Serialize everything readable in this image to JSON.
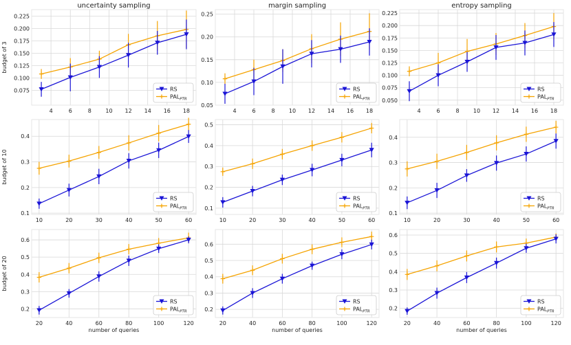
{
  "colors": {
    "rs": "#1a14d6",
    "pal": "#f5a300",
    "grid": "#d8d8d8",
    "frame": "#e6e6e6"
  },
  "chart_data": [
    {
      "type": "line",
      "title": "uncertainty sampling",
      "ylabel": "budget of 3",
      "xlabel": "",
      "x": [
        3,
        6,
        9,
        12,
        15,
        18
      ],
      "xticks": [
        4,
        6,
        8,
        10,
        12,
        14,
        16,
        18
      ],
      "xlim": [
        2,
        19
      ],
      "ylim": [
        0.045,
        0.238
      ],
      "yticks": [
        0.075,
        0.1,
        0.125,
        0.15,
        0.175,
        0.2,
        0.225
      ],
      "ytick_labels": [
        "0.075",
        "0.100",
        "0.125",
        "0.150",
        "0.175",
        "0.200",
        "0.225"
      ],
      "series": [
        {
          "name": "RS",
          "values": [
            0.077,
            0.101,
            0.122,
            0.146,
            0.171,
            0.188
          ],
          "err": [
            0.015,
            0.028,
            0.022,
            0.025,
            0.024,
            0.03
          ]
        },
        {
          "name": "PAL_PTR",
          "values": [
            0.108,
            0.122,
            0.138,
            0.167,
            0.185,
            0.198
          ],
          "err": [
            0.01,
            0.018,
            0.017,
            0.022,
            0.03,
            0.038
          ]
        }
      ],
      "legend": [
        {
          "label": "RS"
        },
        {
          "label": "PAL",
          "sub": "PTR"
        }
      ]
    },
    {
      "type": "line",
      "title": "margin sampling",
      "ylabel": "",
      "xlabel": "",
      "x": [
        3,
        6,
        9,
        12,
        15,
        18
      ],
      "xticks": [
        4,
        6,
        8,
        10,
        12,
        14,
        16,
        18
      ],
      "xlim": [
        2,
        19
      ],
      "ylim": [
        0.05,
        0.26
      ],
      "yticks": [
        0.05,
        0.1,
        0.15,
        0.2,
        0.25
      ],
      "ytick_labels": [
        "0.05",
        "0.10",
        "0.15",
        "0.20",
        "0.25"
      ],
      "series": [
        {
          "name": "RS",
          "values": [
            0.075,
            0.102,
            0.135,
            0.163,
            0.173,
            0.189
          ],
          "err": [
            0.022,
            0.03,
            0.038,
            0.03,
            0.03,
            0.03
          ]
        },
        {
          "name": "PAL_PTR",
          "values": [
            0.108,
            0.128,
            0.148,
            0.174,
            0.195,
            0.212
          ],
          "err": [
            0.012,
            0.022,
            0.025,
            0.032,
            0.037,
            0.04
          ]
        }
      ],
      "legend": [
        {
          "label": "RS"
        },
        {
          "label": "PAL",
          "sub": "PTR"
        }
      ]
    },
    {
      "type": "line",
      "title": "entropy sampling",
      "ylabel": "",
      "xlabel": "",
      "x": [
        3,
        6,
        9,
        12,
        15,
        18
      ],
      "xticks": [
        4,
        6,
        8,
        10,
        12,
        14,
        16,
        18
      ],
      "xlim": [
        2,
        19
      ],
      "ylim": [
        0.04,
        0.232
      ],
      "yticks": [
        0.05,
        0.075,
        0.1,
        0.125,
        0.15,
        0.175,
        0.2,
        0.225
      ],
      "ytick_labels": [
        "0.050",
        "0.075",
        "0.100",
        "0.125",
        "0.150",
        "0.175",
        "0.200",
        "0.225"
      ],
      "series": [
        {
          "name": "RS",
          "values": [
            0.068,
            0.1,
            0.127,
            0.156,
            0.165,
            0.182
          ],
          "err": [
            0.02,
            0.022,
            0.02,
            0.025,
            0.025,
            0.025
          ]
        },
        {
          "name": "PAL_PTR",
          "values": [
            0.108,
            0.125,
            0.148,
            0.163,
            0.18,
            0.198
          ],
          "err": [
            0.01,
            0.02,
            0.025,
            0.022,
            0.025,
            0.027
          ]
        }
      ],
      "legend": [
        {
          "label": "RS"
        },
        {
          "label": "PAL",
          "sub": "PTR"
        }
      ]
    },
    {
      "type": "line",
      "title": "",
      "ylabel": "budget of 10",
      "xlabel": "",
      "x": [
        10,
        20,
        30,
        40,
        50,
        60
      ],
      "xticks": [
        10,
        20,
        30,
        40,
        50,
        60
      ],
      "xlim": [
        7.5,
        62.5
      ],
      "ylim": [
        0.095,
        0.465
      ],
      "yticks": [
        0.1,
        0.2,
        0.3,
        0.4
      ],
      "ytick_labels": [
        "0.1",
        "0.2",
        "0.3",
        "0.4"
      ],
      "series": [
        {
          "name": "RS",
          "values": [
            0.137,
            0.19,
            0.243,
            0.304,
            0.345,
            0.399
          ],
          "err": [
            0.02,
            0.025,
            0.03,
            0.03,
            0.03,
            0.025
          ]
        },
        {
          "name": "PAL_PTR",
          "values": [
            0.275,
            0.303,
            0.337,
            0.374,
            0.412,
            0.447
          ],
          "err": [
            0.025,
            0.025,
            0.025,
            0.03,
            0.032,
            0.025
          ]
        }
      ],
      "legend": [
        {
          "label": "RS"
        },
        {
          "label": "PAL",
          "sub": "PTR"
        }
      ]
    },
    {
      "type": "line",
      "title": "",
      "ylabel": "",
      "xlabel": "",
      "x": [
        10,
        20,
        30,
        40,
        50,
        60
      ],
      "xticks": [
        10,
        20,
        30,
        40,
        50,
        60
      ],
      "xlim": [
        7.5,
        62.5
      ],
      "ylim": [
        0.07,
        0.525
      ],
      "yticks": [
        0.1,
        0.2,
        0.3,
        0.4,
        0.5
      ],
      "ytick_labels": [
        "0.1",
        "0.2",
        "0.3",
        "0.4",
        "0.5"
      ],
      "series": [
        {
          "name": "RS",
          "values": [
            0.128,
            0.182,
            0.236,
            0.283,
            0.331,
            0.379
          ],
          "err": [
            0.025,
            0.025,
            0.025,
            0.03,
            0.03,
            0.035
          ]
        },
        {
          "name": "PAL_PTR",
          "values": [
            0.275,
            0.313,
            0.359,
            0.4,
            0.44,
            0.484
          ],
          "err": [
            0.02,
            0.025,
            0.025,
            0.025,
            0.025,
            0.025
          ]
        }
      ],
      "legend": [
        {
          "label": "RS"
        },
        {
          "label": "PAL",
          "sub": "PTR"
        }
      ]
    },
    {
      "type": "line",
      "title": "",
      "ylabel": "",
      "xlabel": "",
      "x": [
        10,
        20,
        30,
        40,
        50,
        60
      ],
      "xticks": [
        10,
        20,
        30,
        40,
        50,
        60
      ],
      "xlim": [
        7.5,
        62.5
      ],
      "ylim": [
        0.095,
        0.47
      ],
      "yticks": [
        0.1,
        0.2,
        0.3,
        0.4
      ],
      "ytick_labels": [
        "0.1",
        "0.2",
        "0.3",
        "0.4"
      ],
      "series": [
        {
          "name": "RS",
          "values": [
            0.141,
            0.19,
            0.249,
            0.298,
            0.334,
            0.385
          ],
          "err": [
            0.025,
            0.03,
            0.025,
            0.03,
            0.03,
            0.03
          ]
        },
        {
          "name": "PAL_PTR",
          "values": [
            0.275,
            0.305,
            0.34,
            0.378,
            0.412,
            0.44
          ],
          "err": [
            0.03,
            0.03,
            0.03,
            0.03,
            0.03,
            0.025
          ]
        }
      ],
      "legend": [
        {
          "label": "RS"
        },
        {
          "label": "PAL",
          "sub": "PTR"
        }
      ]
    },
    {
      "type": "line",
      "title": "",
      "ylabel": "budget of 20",
      "xlabel": "number of queries",
      "x": [
        20,
        40,
        60,
        80,
        100,
        120
      ],
      "xticks": [
        20,
        40,
        60,
        80,
        100,
        120
      ],
      "xlim": [
        15,
        125
      ],
      "ylim": [
        0.15,
        0.66
      ],
      "yticks": [
        0.2,
        0.3,
        0.4,
        0.5,
        0.6
      ],
      "ytick_labels": [
        "0.2",
        "0.3",
        "0.4",
        "0.5",
        "0.6"
      ],
      "series": [
        {
          "name": "RS",
          "values": [
            0.192,
            0.29,
            0.388,
            0.479,
            0.549,
            0.6
          ],
          "err": [
            0.025,
            0.025,
            0.03,
            0.03,
            0.025,
            0.02
          ]
        },
        {
          "name": "PAL_PTR",
          "values": [
            0.383,
            0.436,
            0.496,
            0.546,
            0.581,
            0.612
          ],
          "err": [
            0.03,
            0.03,
            0.03,
            0.03,
            0.03,
            0.03
          ]
        }
      ],
      "legend": [
        {
          "label": "RS"
        },
        {
          "label": "PAL",
          "sub": "PTR"
        }
      ]
    },
    {
      "type": "line",
      "title": "",
      "ylabel": "",
      "xlabel": "number of queries",
      "x": [
        20,
        40,
        60,
        80,
        100,
        120
      ],
      "xticks": [
        20,
        40,
        60,
        80,
        100,
        120
      ],
      "xlim": [
        15,
        125
      ],
      "ylim": [
        0.15,
        0.69
      ],
      "yticks": [
        0.2,
        0.3,
        0.4,
        0.5,
        0.6
      ],
      "ytick_labels": [
        "0.2",
        "0.3",
        "0.4",
        "0.5",
        "0.6"
      ],
      "series": [
        {
          "name": "RS",
          "values": [
            0.193,
            0.3,
            0.388,
            0.468,
            0.538,
            0.598
          ],
          "err": [
            0.025,
            0.03,
            0.03,
            0.025,
            0.03,
            0.03
          ]
        },
        {
          "name": "PAL_PTR",
          "values": [
            0.388,
            0.44,
            0.511,
            0.569,
            0.612,
            0.647
          ],
          "err": [
            0.03,
            0.03,
            0.03,
            0.03,
            0.03,
            0.03
          ]
        }
      ],
      "legend": [
        {
          "label": "RS"
        },
        {
          "label": "PAL",
          "sub": "PTR"
        }
      ]
    },
    {
      "type": "line",
      "title": "",
      "ylabel": "",
      "xlabel": "number of queries",
      "x": [
        20,
        40,
        60,
        80,
        100,
        120
      ],
      "xticks": [
        20,
        40,
        60,
        80,
        100,
        120
      ],
      "xlim": [
        15,
        125
      ],
      "ylim": [
        0.15,
        0.63
      ],
      "yticks": [
        0.2,
        0.3,
        0.4,
        0.5,
        0.6
      ],
      "ytick_labels": [
        "0.2",
        "0.3",
        "0.4",
        "0.5",
        "0.6"
      ],
      "series": [
        {
          "name": "RS",
          "values": [
            0.185,
            0.283,
            0.368,
            0.447,
            0.528,
            0.579
          ],
          "err": [
            0.02,
            0.03,
            0.03,
            0.03,
            0.025,
            0.025
          ]
        },
        {
          "name": "PAL_PTR",
          "values": [
            0.385,
            0.432,
            0.486,
            0.535,
            0.556,
            0.589
          ],
          "err": [
            0.03,
            0.03,
            0.03,
            0.03,
            0.025,
            0.02
          ]
        }
      ],
      "legend": [
        {
          "label": "RS"
        },
        {
          "label": "PAL",
          "sub": "PTR"
        }
      ]
    }
  ]
}
